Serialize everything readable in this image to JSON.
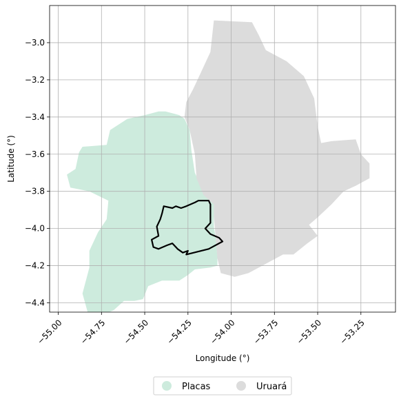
{
  "chart_data": {
    "type": "map",
    "xlabel": "Longitude (°)",
    "ylabel": "Latitude (°)",
    "xlim": [
      -55.05,
      -53.05
    ],
    "ylim": [
      -4.45,
      -2.8
    ],
    "xticks": [
      -55.0,
      -54.75,
      -54.5,
      -54.25,
      -54.0,
      -53.75,
      -53.5,
      -53.25
    ],
    "xtick_labels": [
      "−55.00",
      "−54.75",
      "−54.50",
      "−54.25",
      "−54.00",
      "−53.75",
      "−53.50",
      "−53.25"
    ],
    "yticks": [
      -3.0,
      -3.2,
      -3.4,
      -3.6,
      -3.8,
      -4.0,
      -4.2,
      -4.4
    ],
    "ytick_labels": [
      "−3.0",
      "−3.2",
      "−3.4",
      "−3.6",
      "−3.8",
      "−4.0",
      "−4.2",
      "−4.4"
    ],
    "grid": true,
    "legend_position": "bottom-center",
    "regions": [
      {
        "name": "Placas",
        "color": "#cdebdd",
        "polygon": [
          [
            -54.93,
            -3.78
          ],
          [
            -54.95,
            -3.71
          ],
          [
            -54.9,
            -3.68
          ],
          [
            -54.88,
            -3.59
          ],
          [
            -54.86,
            -3.56
          ],
          [
            -54.72,
            -3.55
          ],
          [
            -54.7,
            -3.47
          ],
          [
            -54.6,
            -3.41
          ],
          [
            -54.5,
            -3.39
          ],
          [
            -54.42,
            -3.37
          ],
          [
            -54.38,
            -3.37
          ],
          [
            -54.3,
            -3.39
          ],
          [
            -54.27,
            -3.41
          ],
          [
            -54.24,
            -3.47
          ],
          [
            -54.23,
            -3.58
          ],
          [
            -54.21,
            -3.7
          ],
          [
            -54.15,
            -3.82
          ],
          [
            -54.1,
            -3.87
          ],
          [
            -54.1,
            -3.99
          ],
          [
            -54.09,
            -4.05
          ],
          [
            -54.08,
            -4.15
          ],
          [
            -54.08,
            -4.2
          ],
          [
            -54.12,
            -4.21
          ],
          [
            -54.21,
            -4.22
          ],
          [
            -54.25,
            -4.25
          ],
          [
            -54.3,
            -4.28
          ],
          [
            -54.4,
            -4.28
          ],
          [
            -54.48,
            -4.31
          ],
          [
            -54.51,
            -4.38
          ],
          [
            -54.56,
            -4.39
          ],
          [
            -54.62,
            -4.39
          ],
          [
            -54.68,
            -4.44
          ],
          [
            -54.76,
            -4.47
          ],
          [
            -54.83,
            -4.45
          ],
          [
            -54.86,
            -4.35
          ],
          [
            -54.82,
            -4.21
          ],
          [
            -54.82,
            -4.12
          ],
          [
            -54.77,
            -4.02
          ],
          [
            -54.72,
            -3.95
          ],
          [
            -54.71,
            -3.85
          ],
          [
            -54.82,
            -3.8
          ]
        ]
      },
      {
        "name": "Uruará",
        "color": "#dcdcdc",
        "polygon": [
          [
            -54.1,
            -2.88
          ],
          [
            -53.88,
            -2.89
          ],
          [
            -53.84,
            -2.96
          ],
          [
            -53.8,
            -3.04
          ],
          [
            -53.68,
            -3.1
          ],
          [
            -53.58,
            -3.18
          ],
          [
            -53.52,
            -3.3
          ],
          [
            -53.5,
            -3.45
          ],
          [
            -53.48,
            -3.54
          ],
          [
            -53.42,
            -3.53
          ],
          [
            -53.28,
            -3.52
          ],
          [
            -53.25,
            -3.6
          ],
          [
            -53.2,
            -3.65
          ],
          [
            -53.2,
            -3.73
          ],
          [
            -53.28,
            -3.77
          ],
          [
            -53.35,
            -3.8
          ],
          [
            -53.42,
            -3.87
          ],
          [
            -53.5,
            -3.94
          ],
          [
            -53.55,
            -3.98
          ],
          [
            -53.5,
            -4.04
          ],
          [
            -53.56,
            -4.08
          ],
          [
            -53.64,
            -4.14
          ],
          [
            -53.7,
            -4.14
          ],
          [
            -53.82,
            -4.2
          ],
          [
            -53.9,
            -4.24
          ],
          [
            -53.98,
            -4.26
          ],
          [
            -54.06,
            -4.24
          ],
          [
            -54.08,
            -4.16
          ],
          [
            -54.09,
            -4.05
          ],
          [
            -54.1,
            -3.93
          ],
          [
            -54.1,
            -3.87
          ],
          [
            -54.16,
            -3.82
          ],
          [
            -54.2,
            -3.73
          ],
          [
            -54.21,
            -3.6
          ],
          [
            -54.24,
            -3.47
          ],
          [
            -54.27,
            -3.4
          ],
          [
            -54.26,
            -3.32
          ],
          [
            -54.22,
            -3.25
          ],
          [
            -54.18,
            -3.17
          ],
          [
            -54.12,
            -3.05
          ]
        ]
      }
    ],
    "outline": {
      "color": "#000000",
      "polygon": [
        [
          -54.39,
          -3.88
        ],
        [
          -54.34,
          -3.89
        ],
        [
          -54.32,
          -3.88
        ],
        [
          -54.29,
          -3.89
        ],
        [
          -54.26,
          -3.88
        ],
        [
          -54.21,
          -3.86
        ],
        [
          -54.19,
          -3.85
        ],
        [
          -54.13,
          -3.85
        ],
        [
          -54.12,
          -3.87
        ],
        [
          -54.12,
          -3.97
        ],
        [
          -54.15,
          -4.0
        ],
        [
          -54.12,
          -4.03
        ],
        [
          -54.07,
          -4.05
        ],
        [
          -54.05,
          -4.07
        ],
        [
          -54.13,
          -4.11
        ],
        [
          -54.26,
          -4.14
        ],
        [
          -54.25,
          -4.12
        ],
        [
          -54.28,
          -4.13
        ],
        [
          -54.31,
          -4.11
        ],
        [
          -54.34,
          -4.08
        ],
        [
          -54.37,
          -4.09
        ],
        [
          -54.42,
          -4.11
        ],
        [
          -54.45,
          -4.1
        ],
        [
          -54.46,
          -4.06
        ],
        [
          -54.42,
          -4.04
        ],
        [
          -54.43,
          -3.99
        ],
        [
          -54.41,
          -3.95
        ],
        [
          -54.4,
          -3.92
        ]
      ]
    }
  }
}
